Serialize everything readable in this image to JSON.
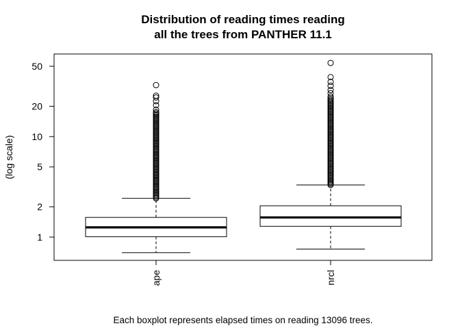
{
  "chart_data": {
    "type": "boxplot",
    "title": "Distribution of reading times reading",
    "subtitle": "all the trees from PANTHER 11.1",
    "xlabel": "",
    "ylabel": "(log scale)",
    "caption": "Each boxplot represents elapsed times on reading 13096 trees.",
    "yscale": "log",
    "ylim": [
      0.6,
      62
    ],
    "yticks": [
      1,
      2,
      5,
      10,
      20,
      50
    ],
    "yticklabels": [
      "1",
      "2",
      "5",
      "10",
      "20",
      "50"
    ],
    "grid": false,
    "categories": [
      "ape",
      "nrcl"
    ],
    "boxes": [
      {
        "name": "ape",
        "whisker_low": 0.7,
        "q1": 1.01,
        "median": 1.25,
        "q3": 1.57,
        "whisker_high": 2.43,
        "outlier_range": [
          2.43,
          17.5
        ],
        "outliers_sparse": [
          18.5,
          20.5,
          22.5,
          24.5,
          25.5,
          32.5
        ]
      },
      {
        "name": "nrcl",
        "whisker_low": 0.76,
        "q1": 1.28,
        "median": 1.57,
        "q3": 2.05,
        "whisker_high": 3.3,
        "outlier_range": [
          3.3,
          24
        ],
        "outliers_sparse": [
          25,
          27,
          29,
          32,
          35,
          39,
          54
        ]
      }
    ]
  }
}
